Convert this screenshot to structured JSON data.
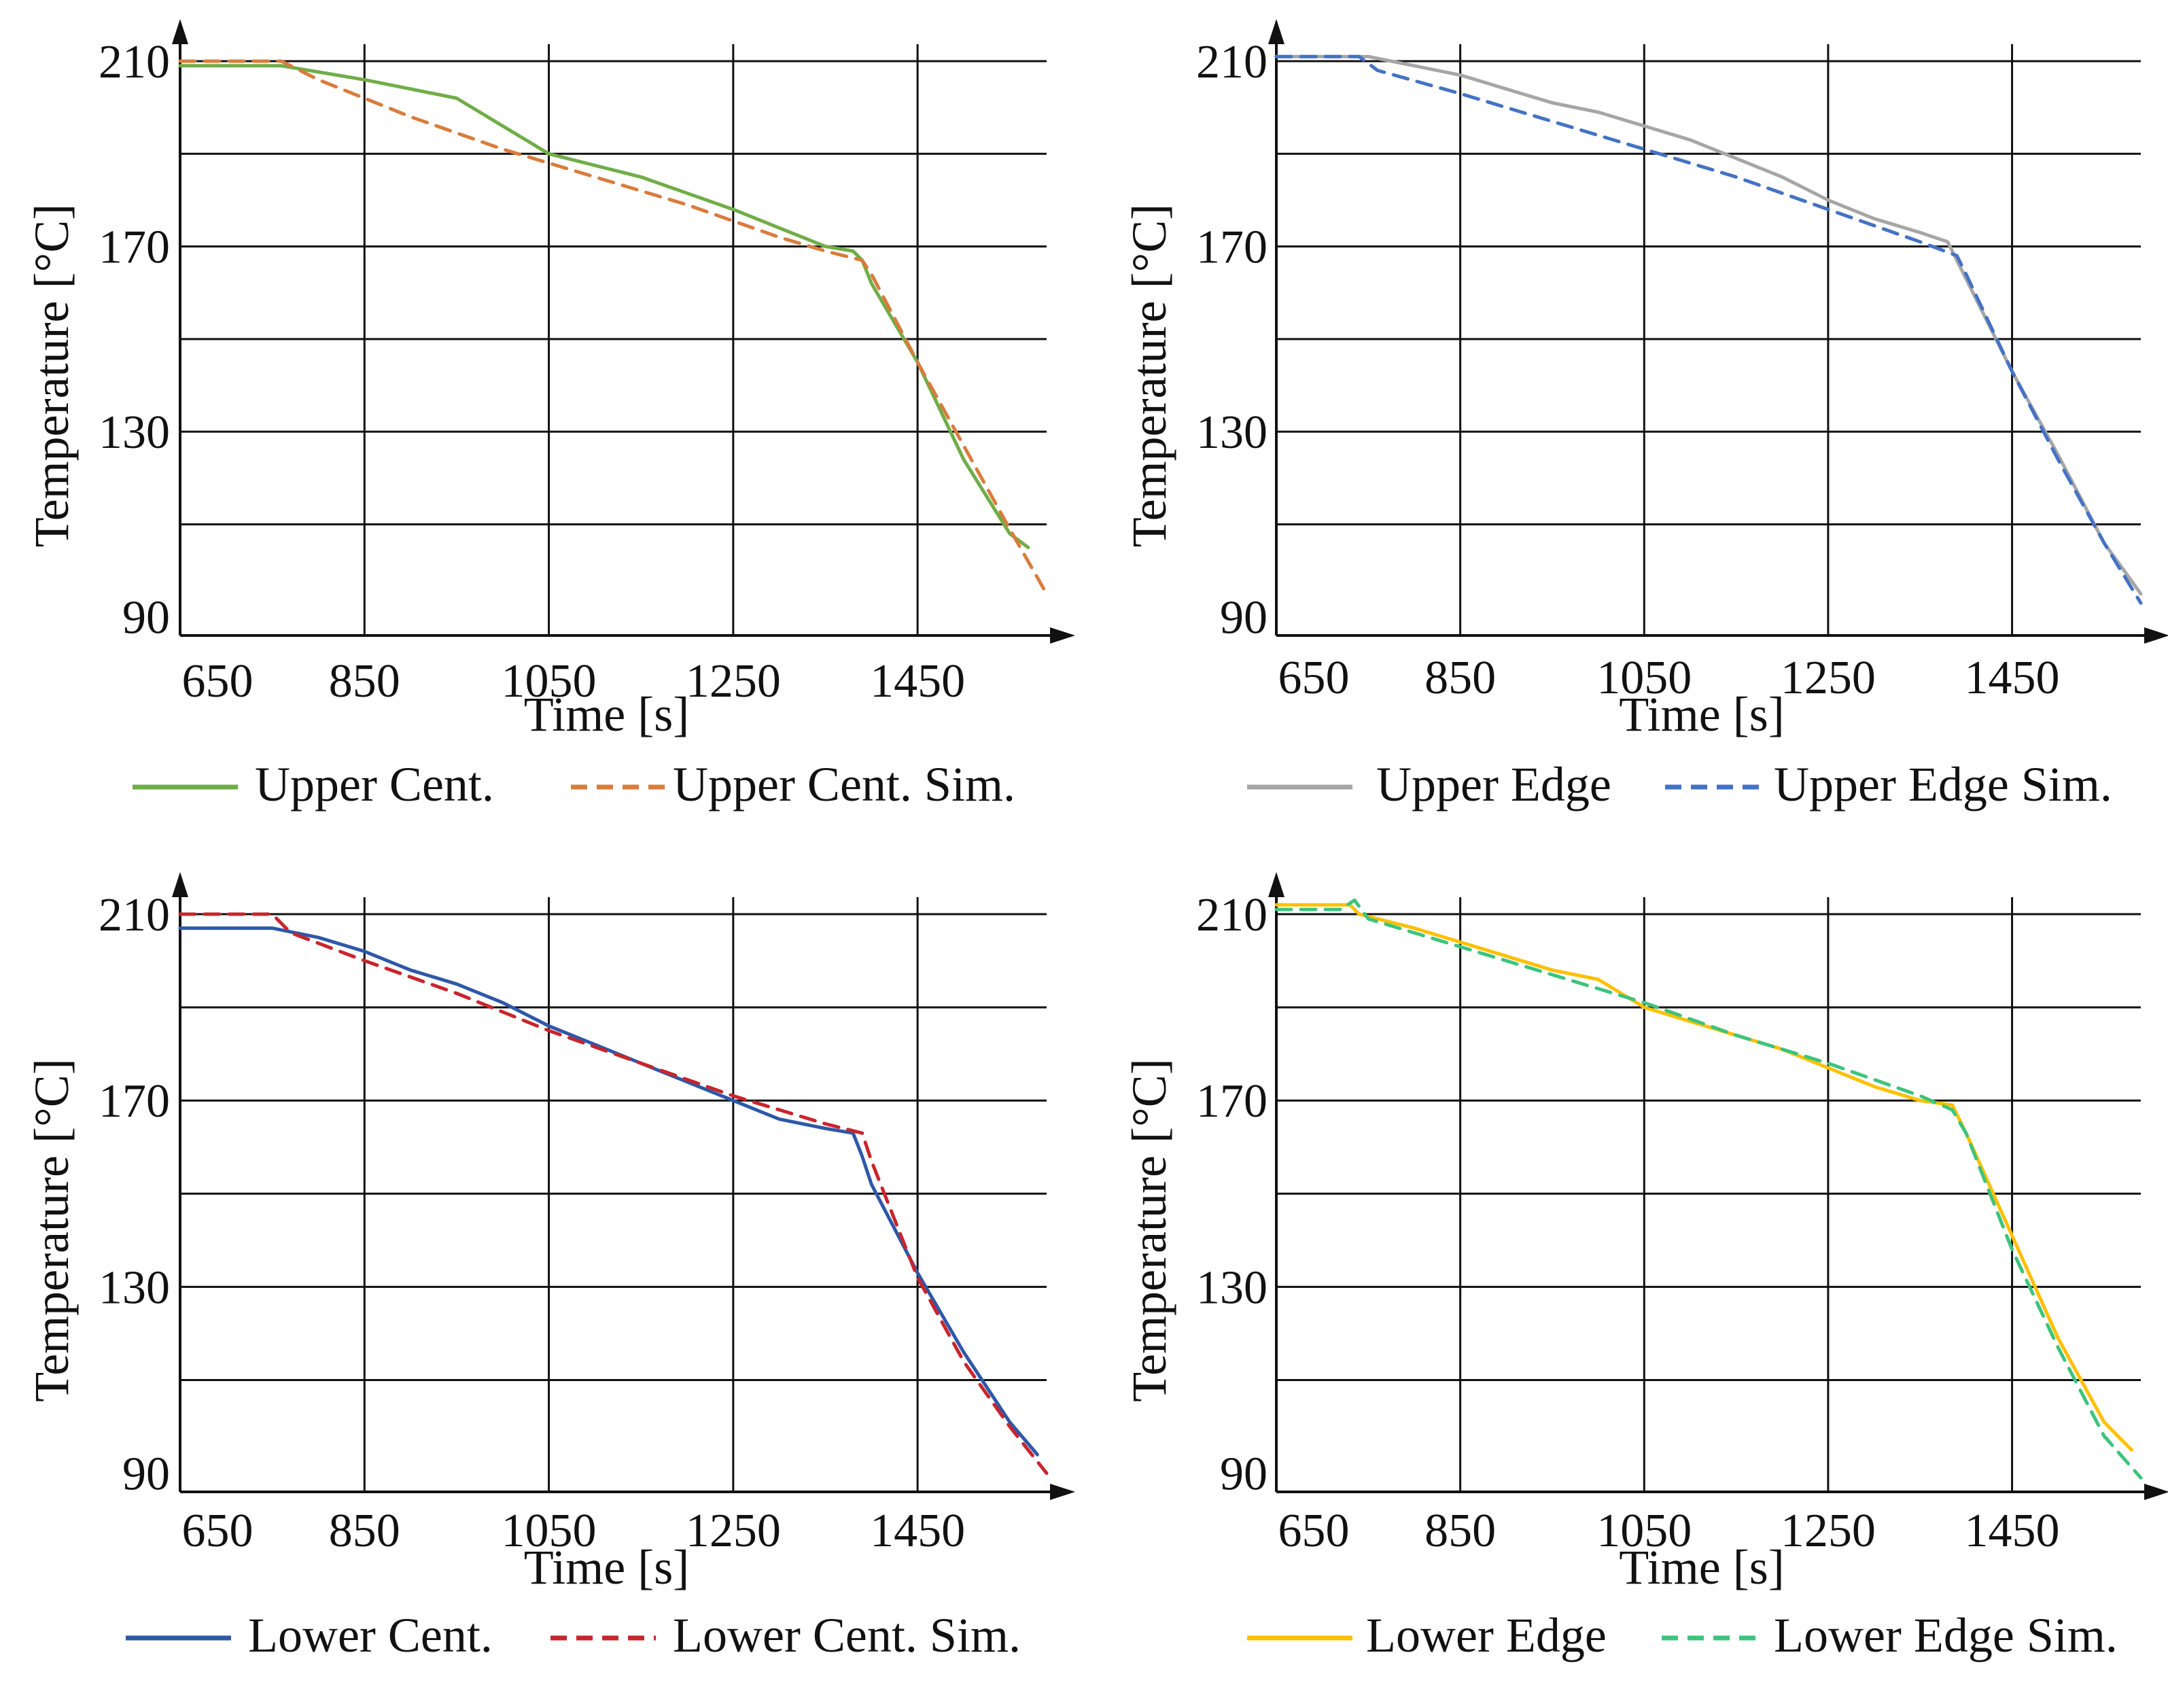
{
  "chart_data": [
    {
      "type": "line",
      "xlabel": "Time [s]",
      "ylabel": "Temperature [°C]",
      "xlim": [
        650,
        1590
      ],
      "ylim": [
        86,
        210
      ],
      "xticks": [
        650,
        850,
        1050,
        1250,
        1450
      ],
      "xtick_labels": [
        "650",
        "850",
        "1050",
        "1250",
        "1450"
      ],
      "yticks": [
        90,
        130,
        170,
        210
      ],
      "ytick_labels": [
        "90",
        "130",
        "170",
        "210"
      ],
      "y_gridlines": [
        110,
        130,
        150,
        170,
        190,
        210
      ],
      "grid": true,
      "legend": "bottom",
      "series": [
        {
          "name": "Upper Cent.",
          "color": "#70ad47",
          "dash": "solid",
          "x": [
            650,
            760,
            850,
            950,
            1050,
            1150,
            1250,
            1350,
            1380,
            1390,
            1400,
            1450,
            1500,
            1550,
            1570
          ],
          "y": [
            209,
            209,
            206,
            202,
            190,
            185,
            178,
            170,
            169,
            167,
            162,
            145,
            124,
            108,
            105
          ]
        },
        {
          "name": "Upper Cent. Sim.",
          "color": "#d97c3c",
          "dash": "dashed",
          "x": [
            650,
            760,
            800,
            900,
            1000,
            1100,
            1200,
            1300,
            1350,
            1390,
            1400,
            1450,
            1500,
            1550,
            1590
          ],
          "y": [
            210,
            210,
            206,
            198,
            191,
            185,
            179,
            172,
            169,
            167,
            164,
            145,
            127,
            109,
            95
          ]
        },
        {
          "name": "Upper Edge",
          "color": "#a6a6a6",
          "dash": "solid",
          "x": [
            650,
            750,
            800,
            850,
            900,
            950,
            1000,
            1050,
            1100,
            1150,
            1200,
            1250,
            1300,
            1350,
            1380,
            1400,
            1450,
            1500,
            1550,
            1590
          ],
          "y": [
            211,
            211,
            209,
            207,
            204,
            201,
            199,
            196,
            193,
            189,
            185,
            180,
            176,
            173,
            171,
            163,
            143,
            125,
            106,
            95
          ]
        },
        {
          "name": "Upper Edge Sim.",
          "color": "#4472c4",
          "dash": "dashed",
          "x": [
            650,
            740,
            760,
            850,
            950,
            1050,
            1150,
            1250,
            1350,
            1390,
            1400,
            1450,
            1500,
            1550,
            1590
          ],
          "y": [
            211,
            211,
            208,
            203,
            197,
            191,
            185,
            178,
            171,
            168,
            164,
            143,
            124,
            106,
            93
          ]
        },
        {
          "name": "Lower Cent.",
          "color": "#2e58a8",
          "dash": "solid",
          "x": [
            650,
            750,
            800,
            850,
            900,
            950,
            1000,
            1050,
            1100,
            1150,
            1200,
            1250,
            1300,
            1350,
            1380,
            1390,
            1400,
            1450,
            1500,
            1550,
            1580
          ],
          "y": [
            207,
            207,
            205,
            202,
            198,
            195,
            191,
            186,
            182,
            178,
            174,
            170,
            166,
            164,
            163,
            158,
            152,
            133,
            116,
            101,
            94
          ]
        },
        {
          "name": "Lower Cent. Sim.",
          "color": "#c9252c",
          "dash": "dashed",
          "x": [
            650,
            750,
            770,
            850,
            950,
            1050,
            1150,
            1250,
            1350,
            1390,
            1400,
            1450,
            1500,
            1550,
            1590
          ],
          "y": [
            210,
            210,
            206,
            200,
            193,
            185,
            178,
            171,
            165,
            163,
            157,
            132,
            114,
            100,
            90
          ]
        },
        {
          "name": "Lower Edge",
          "color": "#ffc000",
          "dash": "solid",
          "x": [
            650,
            730,
            740,
            800,
            850,
            900,
            950,
            1000,
            1050,
            1100,
            1150,
            1200,
            1250,
            1300,
            1350,
            1385,
            1400,
            1450,
            1500,
            1550,
            1580
          ],
          "y": [
            212,
            212,
            210,
            207,
            204,
            201,
            198,
            196,
            190,
            187,
            184,
            181,
            177,
            173,
            170,
            169,
            163,
            141,
            119,
            101,
            95
          ]
        },
        {
          "name": "Lower Edge Sim.",
          "color": "#3cc47c",
          "dash": "dashed",
          "x": [
            650,
            720,
            735,
            750,
            850,
            950,
            1050,
            1150,
            1250,
            1350,
            1385,
            1400,
            1450,
            1500,
            1550,
            1590
          ],
          "y": [
            211,
            211,
            213,
            209,
            203,
            197,
            191,
            184,
            178,
            171,
            168,
            163,
            138,
            117,
            98,
            89
          ]
        }
      ],
      "panels": [
        {
          "id": "upper-centre",
          "series": [
            "Upper Cent.",
            "Upper Cent. Sim."
          ]
        },
        {
          "id": "upper-edge",
          "series": [
            "Upper Edge",
            "Upper Edge Sim."
          ]
        },
        {
          "id": "lower-centre",
          "series": [
            "Lower Cent.",
            "Lower Cent. Sim."
          ]
        },
        {
          "id": "lower-edge",
          "series": [
            "Lower Edge",
            "Lower Edge Sim."
          ]
        }
      ]
    }
  ]
}
